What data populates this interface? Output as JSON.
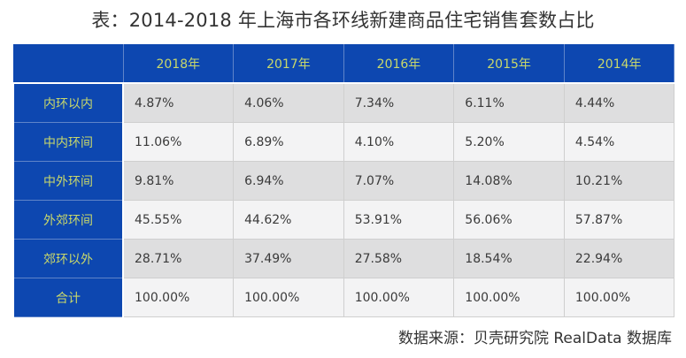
{
  "title": "表：2014-2018 年上海市各环线新建商品住宅销售套数占比",
  "table": {
    "corner": "",
    "columns": [
      "2018年",
      "2017年",
      "2016年",
      "2015年",
      "2014年"
    ],
    "rows": [
      {
        "label": "内环以内",
        "values": [
          "4.87%",
          "4.06%",
          "7.34%",
          "6.11%",
          "4.44%"
        ]
      },
      {
        "label": "中内环间",
        "values": [
          "11.06%",
          "6.89%",
          "4.10%",
          "5.20%",
          "4.54%"
        ]
      },
      {
        "label": "中外环间",
        "values": [
          "9.81%",
          "6.94%",
          "7.07%",
          "14.08%",
          "10.21%"
        ]
      },
      {
        "label": "外郊环间",
        "values": [
          "45.55%",
          "44.62%",
          "53.91%",
          "56.06%",
          "57.87%"
        ]
      },
      {
        "label": "郊环以外",
        "values": [
          "28.71%",
          "37.49%",
          "27.58%",
          "18.54%",
          "22.94%"
        ]
      },
      {
        "label": "合计",
        "values": [
          "100.00%",
          "100.00%",
          "100.00%",
          "100.00%",
          "100.00%"
        ]
      }
    ]
  },
  "source": "数据来源：贝壳研究院 RealData 数据库",
  "colors": {
    "header_bg": "#0d47b0",
    "header_text": "#c9d86a",
    "row_odd": "#dededf",
    "row_even": "#f3f3f4"
  }
}
